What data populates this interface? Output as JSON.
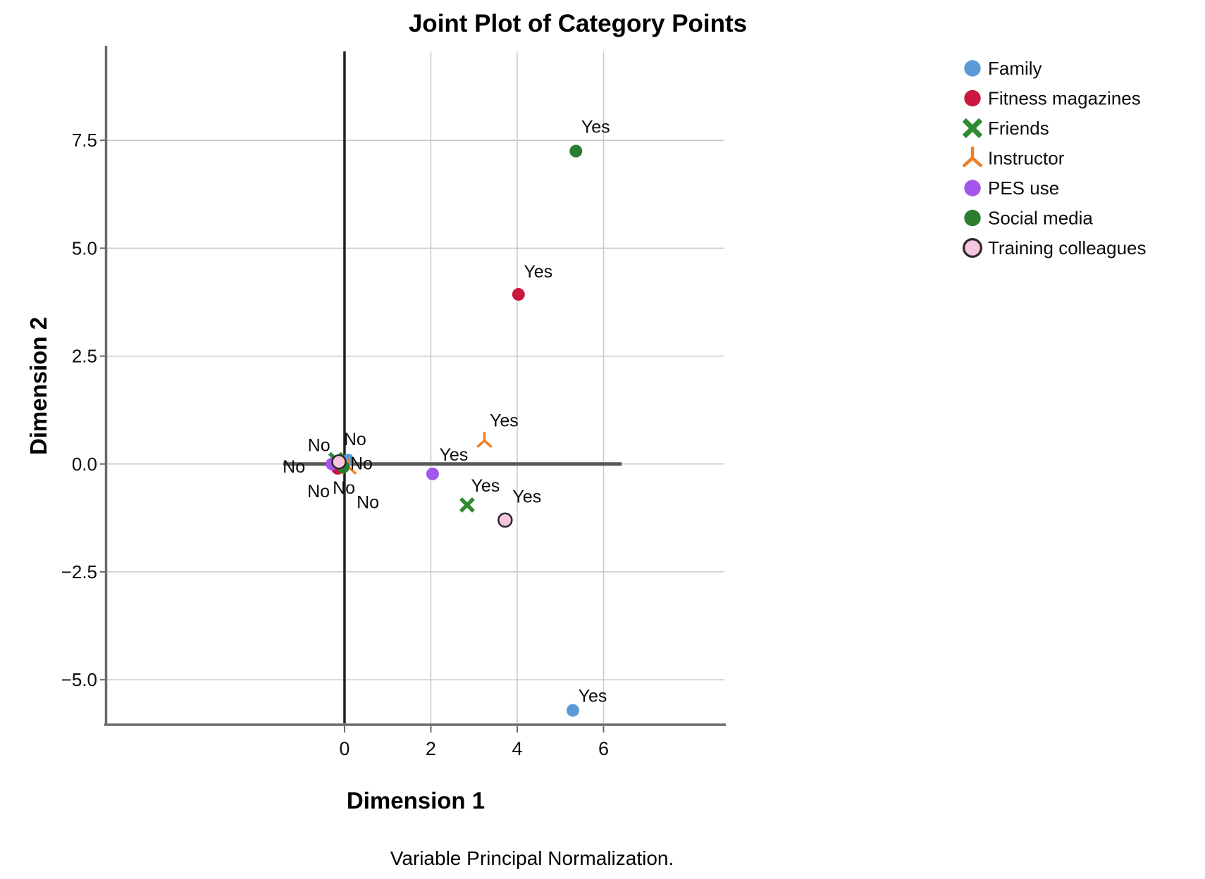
{
  "figure": {
    "title": "Joint Plot of Category Points",
    "x_axis_title": "Dimension 1",
    "y_axis_title": "Dimension 2",
    "footnote": "Variable Principal Normalization."
  },
  "chart_data": {
    "type": "scatter",
    "title": "Joint Plot of Category Points",
    "xlabel": "Dimension 1",
    "ylabel": "Dimension 2",
    "footnote": "Variable Principal Normalization.",
    "xlim": [
      -5.5,
      8.8
    ],
    "ylim": [
      -6.01,
      9.56
    ],
    "grid": true,
    "equal_aspect": true,
    "x_ticks": [
      {
        "value": 0,
        "label": "0"
      },
      {
        "value": 2,
        "label": "2"
      },
      {
        "value": 4,
        "label": "4"
      },
      {
        "value": 6,
        "label": "6"
      }
    ],
    "y_ticks": [
      {
        "value": 7.5,
        "label": "7.5"
      },
      {
        "value": 5.0,
        "label": "5.0"
      },
      {
        "value": 2.5,
        "label": "2.5"
      },
      {
        "value": 0.0,
        "label": "0.0"
      },
      {
        "value": -2.5,
        "label": "−2.5"
      },
      {
        "value": -5.0,
        "label": "−5.0"
      }
    ],
    "reference_lines": {
      "vertical_at_x": 0,
      "horizontal_at_y": 0,
      "horizontal_x_span": [
        -1.42,
        6.42
      ]
    },
    "legend": {
      "position": "top-right",
      "items": [
        {
          "label": "Family",
          "marker": "circle",
          "color": "#5b9bd5"
        },
        {
          "label": "Fitness magazines",
          "marker": "circle",
          "color": "#cb1740"
        },
        {
          "label": "Friends",
          "marker": "x",
          "color": "#2f8b2f"
        },
        {
          "label": "Instructor",
          "marker": "tri-up",
          "color": "#f07e26"
        },
        {
          "label": "PES use",
          "marker": "circle",
          "color": "#a455ec"
        },
        {
          "label": "Social media",
          "marker": "circle",
          "color": "#2a7e2e"
        },
        {
          "label": "Training colleagues",
          "marker": "circle-outline",
          "color": "#f7c6de",
          "stroke": "#2a2a2a"
        }
      ]
    },
    "series": [
      {
        "name": "Family",
        "marker": "circle",
        "color": "#5b9bd5",
        "points": [
          {
            "category": "No",
            "x": 0.08,
            "y": 0.09,
            "label_dx": 10,
            "label_dy": -30
          },
          {
            "category": "Yes",
            "x": 5.29,
            "y": -5.71,
            "label_dx": 28,
            "label_dy": -21
          }
        ]
      },
      {
        "name": "Fitness magazines",
        "marker": "circle",
        "color": "#cb1740",
        "points": [
          {
            "category": "No",
            "x": -0.16,
            "y": -0.1,
            "label_dx": -27,
            "label_dy": 32
          },
          {
            "category": "Yes",
            "x": 4.03,
            "y": 3.93,
            "label_dx": 28,
            "label_dy": -33
          }
        ]
      },
      {
        "name": "Friends",
        "marker": "x",
        "color": "#2f8b2f",
        "points": [
          {
            "category": "No",
            "x": -0.2,
            "y": 0.1,
            "label_dx": -24,
            "label_dy": -21
          },
          {
            "category": "Yes",
            "x": 2.84,
            "y": -0.95,
            "label_dx": 26,
            "label_dy": -28
          }
        ]
      },
      {
        "name": "Instructor",
        "marker": "tri-up",
        "color": "#f07e26",
        "points": [
          {
            "category": "No",
            "x": 0.1,
            "y": -0.08,
            "label_dx": 27,
            "label_dy": 49
          },
          {
            "category": "Yes",
            "x": 3.24,
            "y": 0.54,
            "label_dx": 28,
            "label_dy": -29
          }
        ]
      },
      {
        "name": "Social media",
        "marker": "circle",
        "color": "#2a7e2e",
        "points": [
          {
            "category": "No",
            "x": -0.03,
            "y": -0.07,
            "label_dx": 1,
            "label_dy": 29
          },
          {
            "category": "Yes",
            "x": 5.36,
            "y": 7.25,
            "label_dx": 28,
            "label_dy": -35
          }
        ]
      },
      {
        "name": "PES use",
        "marker": "circle",
        "color": "#a455ec",
        "points": [
          {
            "category": "No",
            "x": -0.29,
            "y": 0.0,
            "label_dx": -54,
            "label_dy": 3
          },
          {
            "category": "Yes",
            "x": 2.04,
            "y": -0.23,
            "label_dx": 30,
            "label_dy": -28
          }
        ]
      },
      {
        "name": "Training colleagues",
        "marker": "circle-outline",
        "color": "#f7c6de",
        "stroke": "#2a2a2a",
        "points": [
          {
            "category": "No",
            "x": -0.13,
            "y": 0.05,
            "label_dx": 32,
            "label_dy": 2
          },
          {
            "category": "Yes",
            "x": 3.72,
            "y": -1.3,
            "label_dx": 31,
            "label_dy": -34
          }
        ]
      }
    ],
    "styles": {
      "gridline_color": "#c9c9c9",
      "axis_color": "#6a6a6a",
      "zero_vline_color": "#1f1f1f",
      "zero_hline_color": "#585858"
    }
  }
}
